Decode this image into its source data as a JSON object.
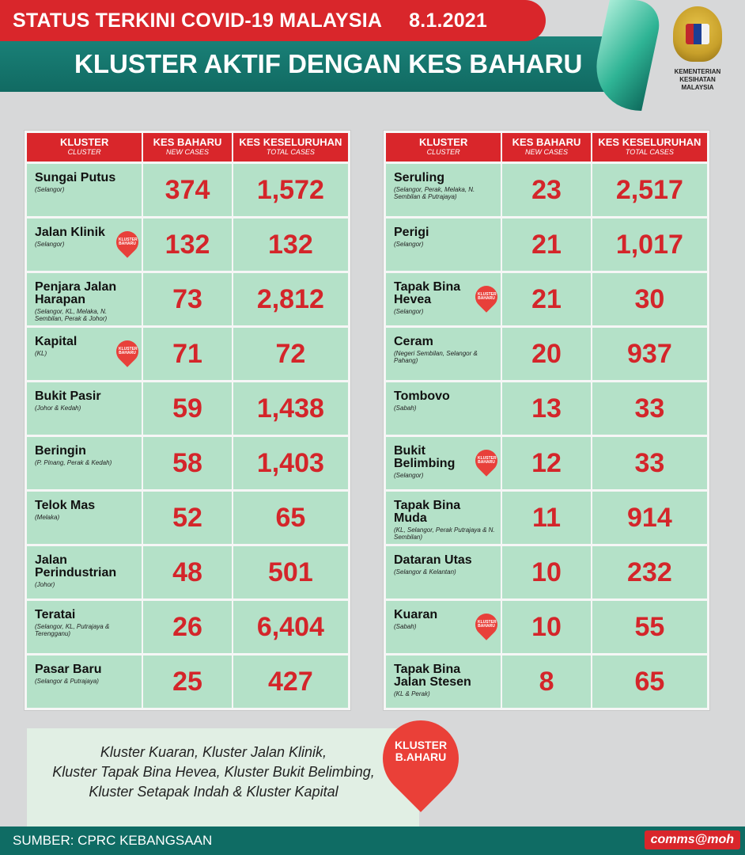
{
  "header": {
    "title": "STATUS TERKINI COVID-19 MALAYSIA",
    "date": "8.1.2021",
    "subtitle": "KLUSTER AKTIF DENGAN KES BAHARU",
    "ministry_line1": "KEMENTERIAN KESIHATAN",
    "ministry_line2": "MALAYSIA"
  },
  "colors": {
    "red": "#d9262b",
    "teal": "#0f6c64",
    "row_green": "#b4e1c8"
  },
  "table_header": {
    "kluster": "KLUSTER",
    "kluster_sub": "CLUSTER",
    "new": "KES BAHARU",
    "new_sub": "NEW CASES",
    "total": "KES KESELURUHAN",
    "total_sub": "TOTAL CASES"
  },
  "pin_label": "KLUSTER BAHARU",
  "left_rows": [
    {
      "name": "Sungai Putus",
      "loc": "(Selangor)",
      "new": "374",
      "total": "1,572",
      "pin": false
    },
    {
      "name": "Jalan Klinik",
      "loc": "(Selangor)",
      "new": "132",
      "total": "132",
      "pin": true
    },
    {
      "name": "Penjara Jalan Harapan",
      "loc": "(Selangor, KL, Melaka, N. Sembilan, Perak & Johor)",
      "new": "73",
      "total": "2,812",
      "pin": false
    },
    {
      "name": "Kapital",
      "loc": "(KL)",
      "new": "71",
      "total": "72",
      "pin": true
    },
    {
      "name": "Bukit Pasir",
      "loc": "(Johor & Kedah)",
      "new": "59",
      "total": "1,438",
      "pin": false
    },
    {
      "name": "Beringin",
      "loc": "(P. Pinang, Perak & Kedah)",
      "new": "58",
      "total": "1,403",
      "pin": false
    },
    {
      "name": "Telok Mas",
      "loc": "(Melaka)",
      "new": "52",
      "total": "65",
      "pin": false
    },
    {
      "name": "Jalan Perindustrian",
      "loc": "(Johor)",
      "new": "48",
      "total": "501",
      "pin": false
    },
    {
      "name": "Teratai",
      "loc": "(Selangor, KL, Putrajaya & Terengganu)",
      "new": "26",
      "total": "6,404",
      "pin": false
    },
    {
      "name": "Pasar Baru",
      "loc": "(Selangor & Putrajaya)",
      "new": "25",
      "total": "427",
      "pin": false
    }
  ],
  "right_rows": [
    {
      "name": "Seruling",
      "loc": "(Selangor, Perak, Melaka, N. Sembilan & Putrajaya)",
      "new": "23",
      "total": "2,517",
      "pin": false
    },
    {
      "name": "Perigi",
      "loc": "(Selangor)",
      "new": "21",
      "total": "1,017",
      "pin": false
    },
    {
      "name": "Tapak Bina Hevea",
      "loc": "(Selangor)",
      "new": "21",
      "total": "30",
      "pin": true
    },
    {
      "name": "Ceram",
      "loc": "(Negeri Sembilan, Selangor & Pahang)",
      "new": "20",
      "total": "937",
      "pin": false
    },
    {
      "name": "Tombovo",
      "loc": "(Sabah)",
      "new": "13",
      "total": "33",
      "pin": false
    },
    {
      "name": "Bukit Belimbing",
      "loc": "(Selangor)",
      "new": "12",
      "total": "33",
      "pin": true
    },
    {
      "name": "Tapak Bina Muda",
      "loc": "(KL, Selangor, Perak Putrajaya & N. Sembilan)",
      "new": "11",
      "total": "914",
      "pin": false
    },
    {
      "name": "Dataran Utas",
      "loc": "(Selangor & Kelantan)",
      "new": "10",
      "total": "232",
      "pin": false
    },
    {
      "name": "Kuaran",
      "loc": "(Sabah)",
      "new": "10",
      "total": "55",
      "pin": true
    },
    {
      "name": "Tapak Bina Jalan Stesen",
      "loc": "(KL & Perak)",
      "new": "8",
      "total": "65",
      "pin": false
    }
  ],
  "note": {
    "line1": "Kluster Kuaran, Kluster Jalan Klinik,",
    "line2": "Kluster Tapak Bina Hevea, Kluster Bukit Belimbing,",
    "line3": "Kluster Setapak Indah & Kluster Kapital",
    "pin_line1": "KLUSTER",
    "pin_line2": "B.AHARU"
  },
  "footer": {
    "source": "SUMBER: CPRC KEBANGSAAN",
    "tag": "comms@moh"
  }
}
